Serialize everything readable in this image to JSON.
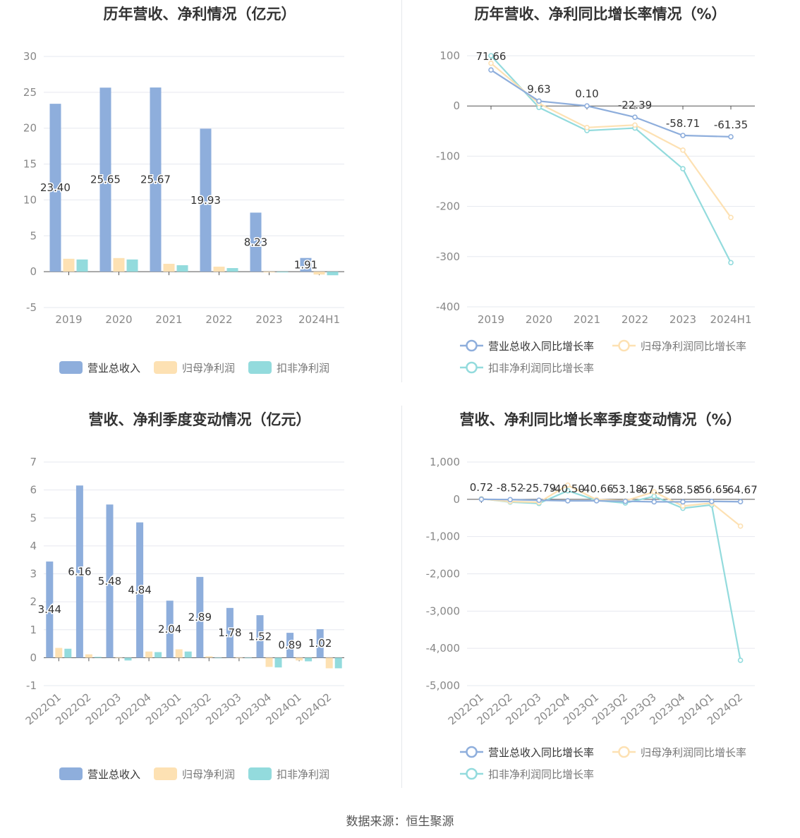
{
  "source": "数据来源：恒生聚源",
  "colors": {
    "revenue": "#8eaedc",
    "netprofit": "#fde1b3",
    "deducted": "#93dbdd",
    "axis": "#555555",
    "grid": "#e6e8ef",
    "tick": "#888888"
  },
  "chart_data": [
    {
      "id": "annual-amounts",
      "type": "bar",
      "title": "历年营收、净利情况（亿元）",
      "categories": [
        "2019",
        "2020",
        "2021",
        "2022",
        "2023",
        "2024H1"
      ],
      "series": [
        {
          "name": "营业总收入",
          "values": [
            23.4,
            25.65,
            25.67,
            19.93,
            8.23,
            1.91
          ]
        },
        {
          "name": "归母净利润",
          "values": [
            1.8,
            1.9,
            1.1,
            0.7,
            -0.1,
            -0.4
          ]
        },
        {
          "name": "扣非净利润",
          "values": [
            1.7,
            1.7,
            0.9,
            0.5,
            -0.1,
            -0.5
          ]
        }
      ],
      "labeled_series": 0,
      "data_labels": [
        "23.40",
        "25.65",
        "25.67",
        "19.93",
        "8.23",
        "1.91"
      ],
      "ylim": [
        -5,
        30
      ],
      "yticks": [
        -5,
        0,
        5,
        10,
        15,
        20,
        25,
        30
      ],
      "grid": true,
      "legend": "bottom"
    },
    {
      "id": "annual-growth",
      "type": "line",
      "title": "历年营收、净利同比增长率情况（%）",
      "categories": [
        "2019",
        "2020",
        "2021",
        "2022",
        "2023",
        "2024H1"
      ],
      "series": [
        {
          "name": "营业总收入同比增长率",
          "values": [
            71.66,
            9.63,
            0.1,
            -22.39,
            -58.71,
            -61.35
          ]
        },
        {
          "name": "归母净利润同比增长率",
          "values": [
            85,
            5,
            -43,
            -38,
            -88,
            -222
          ]
        },
        {
          "name": "扣非净利润同比增长率",
          "values": [
            100,
            -3,
            -49,
            -44,
            -125,
            -312
          ]
        }
      ],
      "labeled_series": 0,
      "data_labels": [
        "71.66",
        "9.63",
        "0.10",
        "-22.39",
        "-58.71",
        "-61.35"
      ],
      "ylim": [
        -400,
        100
      ],
      "yticks": [
        -400,
        -300,
        -200,
        -100,
        0,
        100
      ],
      "grid": true,
      "legend": "bottom"
    },
    {
      "id": "quarterly-amounts",
      "type": "bar",
      "title": "营收、净利季度变动情况（亿元）",
      "categories": [
        "2022Q1",
        "2022Q2",
        "2022Q3",
        "2022Q4",
        "2023Q1",
        "2023Q2",
        "2023Q3",
        "2023Q4",
        "2024Q1",
        "2024Q2"
      ],
      "series": [
        {
          "name": "营业总收入",
          "values": [
            3.44,
            6.16,
            5.48,
            4.84,
            2.04,
            2.89,
            1.78,
            1.52,
            0.89,
            1.02
          ]
        },
        {
          "name": "归母净利润",
          "values": [
            0.35,
            0.12,
            -0.02,
            0.22,
            0.3,
            0.05,
            -0.02,
            -0.33,
            -0.1,
            -0.38
          ]
        },
        {
          "name": "扣非净利润",
          "values": [
            0.32,
            0.03,
            -0.1,
            0.2,
            0.22,
            0.0,
            -0.01,
            -0.35,
            -0.13,
            -0.38
          ]
        }
      ],
      "labeled_series": 0,
      "data_labels": [
        "3.44",
        "6.16",
        "5.48",
        "4.84",
        "2.04",
        "2.89",
        "1.78",
        "1.52",
        "0.89",
        "1.02"
      ],
      "ylim": [
        -1,
        7
      ],
      "yticks": [
        -1,
        0,
        1,
        2,
        3,
        4,
        5,
        6,
        7
      ],
      "grid": true,
      "legend": "bottom"
    },
    {
      "id": "quarterly-growth",
      "type": "line",
      "title": "营收、净利同比增长率季度变动情况（%）",
      "categories": [
        "2022Q1",
        "2022Q2",
        "2022Q3",
        "2022Q4",
        "2023Q1",
        "2023Q2",
        "2023Q3",
        "2023Q4",
        "2024Q1",
        "2024Q2"
      ],
      "series": [
        {
          "name": "营业总收入同比增长率",
          "values": [
            0.72,
            -8.52,
            -25.79,
            -40.5,
            -40.66,
            -53.18,
            -67.55,
            -68.58,
            -56.65,
            -64.67
          ]
        },
        {
          "name": "归母净利润同比增长率",
          "values": [
            10,
            -60,
            -80,
            380,
            -10,
            -40,
            200,
            -180,
            -100,
            -720
          ]
        },
        {
          "name": "扣非净利润同比增长率",
          "values": [
            15,
            -75,
            -110,
            230,
            -30,
            -100,
            80,
            -240,
            -150,
            -4320
          ]
        }
      ],
      "labeled_series": 0,
      "data_labels": [
        "0.72",
        "-8.52",
        "-25.79",
        "-40.50",
        "-40.66",
        "-53.18",
        "-67.55",
        "-68.58",
        "-56.65",
        "-64.67"
      ],
      "ylim": [
        -5000,
        1000
      ],
      "yticks": [
        -5000,
        -4000,
        -3000,
        -2000,
        -1000,
        0,
        1000
      ],
      "ytick_labels": [
        "-5,000",
        "-4,000",
        "-3,000",
        "-2,000",
        "-1,000",
        "0",
        "1,000"
      ],
      "grid": true,
      "legend": "bottom"
    }
  ]
}
